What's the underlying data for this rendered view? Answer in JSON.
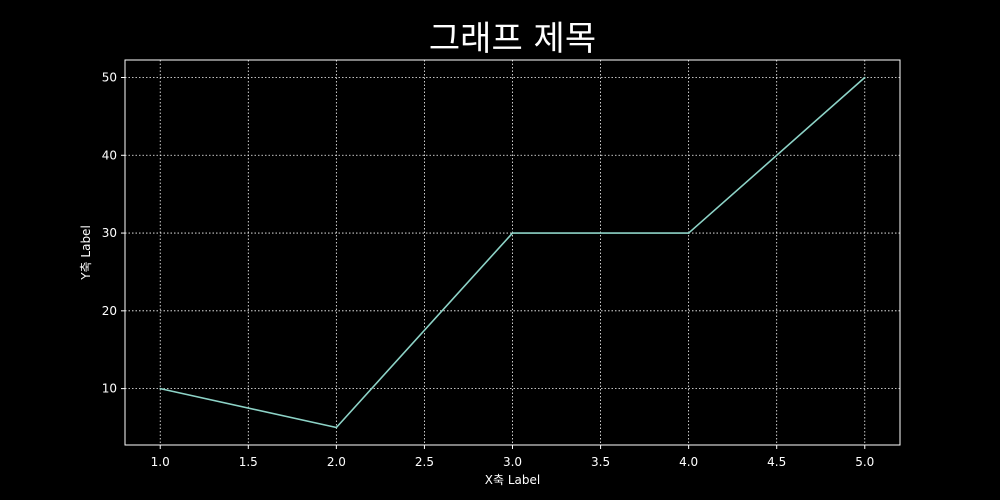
{
  "chart_data": {
    "type": "line",
    "title": "그래프 제목",
    "xlabel": "X축 Label",
    "ylabel": "Y축 Label",
    "x": [
      1.0,
      2.0,
      3.0,
      4.0,
      5.0
    ],
    "series": [
      {
        "values": [
          10,
          5,
          30,
          30,
          50
        ],
        "color": "#8dd3c7"
      }
    ],
    "xlim": [
      0.8,
      5.2
    ],
    "ylim": [
      2.75,
      52.25
    ],
    "xticks": [
      "1.0",
      "1.5",
      "2.0",
      "2.5",
      "3.0",
      "3.5",
      "4.0",
      "4.5",
      "5.0"
    ],
    "yticks": [
      "10",
      "20",
      "30",
      "40",
      "50"
    ],
    "grid": true,
    "grid_style": "dotted",
    "background_color": "#000000",
    "axis_color": "#ffffff"
  }
}
